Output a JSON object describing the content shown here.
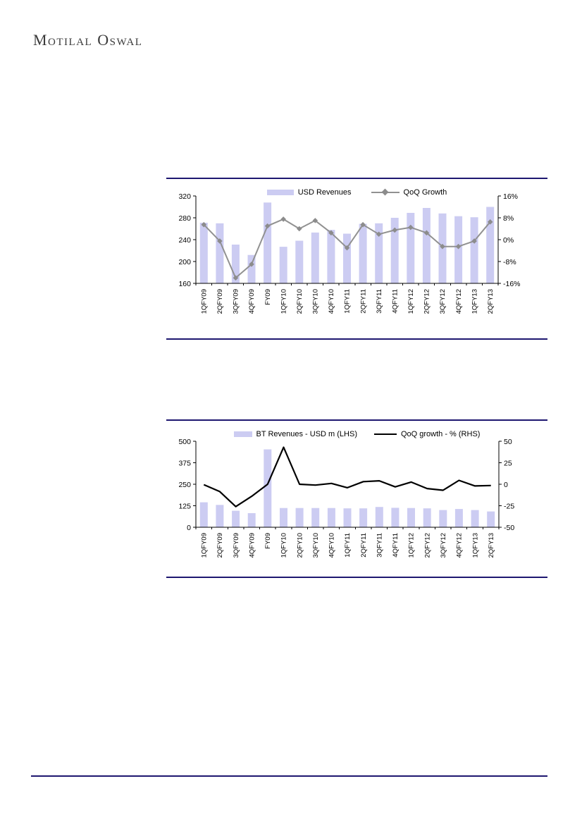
{
  "page": {
    "logo_text": "Motilal Oswal"
  },
  "colors": {
    "accent_rule": "#1E1770",
    "bar_fill": "#CCCCF2",
    "line_gray": "#919191",
    "marker_gray": "#8C8C8C",
    "line_black": "#000000",
    "axis": "#000000"
  },
  "chart_data": [
    {
      "type": "bar+line",
      "title": "",
      "categories": [
        "1QFY09",
        "2QFY09",
        "3QFY09",
        "4QFY09",
        "FY09",
        "1QFY10",
        "2QFY10",
        "3QFY10",
        "4QFY10",
        "1QFY11",
        "2QFY11",
        "3QFY11",
        "4QFY11",
        "1QFY12",
        "2QFY12",
        "3QFY12",
        "4QFY12",
        "1QFY13",
        "2QFY13"
      ],
      "series": [
        {
          "name": "USD Revenues",
          "type": "bar",
          "axis": "left",
          "color": "#CCCCF2",
          "values": [
            271,
            270,
            231,
            212,
            308,
            227,
            238,
            253,
            258,
            251,
            269,
            270,
            280,
            289,
            298,
            288,
            283,
            281,
            300
          ]
        },
        {
          "name": "QoQ Growth",
          "type": "line",
          "axis": "right",
          "color": "#919191",
          "marker": "diamond",
          "marker_color": "#8C8C8C",
          "values": [
            5.5,
            -0.5,
            -14,
            -9,
            5,
            7.5,
            4,
            7,
            2.5,
            -3,
            5.5,
            2,
            3.5,
            4.5,
            2.5,
            -2.5,
            -2.5,
            -0.5,
            6.5
          ]
        }
      ],
      "left_axis": {
        "min": 160,
        "max": 320,
        "ticks": [
          320,
          280,
          240,
          200,
          160
        ],
        "format": "number"
      },
      "right_axis": {
        "min": -16,
        "max": 16,
        "ticks": [
          16,
          8,
          0,
          -8,
          -16
        ],
        "format": "percent"
      },
      "legend_position": "top",
      "grid": false
    },
    {
      "type": "bar+line",
      "title": "",
      "categories": [
        "1QFY09",
        "2QFY09",
        "3QFY09",
        "4QFY09",
        "FY09",
        "1QFY10",
        "2QFY10",
        "3QFY10",
        "4QFY10",
        "1QFY11",
        "2QFY11",
        "3QFY11",
        "4QFY11",
        "1QFY12",
        "2QFY12",
        "3QFY12",
        "4QFY12",
        "1QFY13",
        "2QFY13"
      ],
      "series": [
        {
          "name": "BT Revenues - USD m (LHS)",
          "type": "bar",
          "axis": "left",
          "color": "#CCCCF2",
          "values": [
            145,
            130,
            96,
            82,
            453,
            112,
            112,
            112,
            112,
            110,
            110,
            118,
            113,
            112,
            110,
            100,
            106,
            100,
            92
          ]
        },
        {
          "name": "QoQ growth - % (RHS)",
          "type": "line",
          "axis": "right",
          "color": "#000000",
          "marker": "none",
          "values": [
            -0.5,
            -8.5,
            -26,
            -14,
            0,
            43,
            0,
            -1,
            1,
            -4,
            3,
            4,
            -3,
            2.5,
            -5,
            -7,
            4.5,
            -2,
            -1.5
          ]
        }
      ],
      "left_axis": {
        "min": 0,
        "max": 500,
        "ticks": [
          500,
          375,
          250,
          125,
          0
        ],
        "format": "number"
      },
      "right_axis": {
        "min": -50,
        "max": 50,
        "ticks": [
          50,
          25,
          0,
          -25,
          -50
        ],
        "format": "number"
      },
      "legend_position": "top",
      "grid": false
    }
  ]
}
